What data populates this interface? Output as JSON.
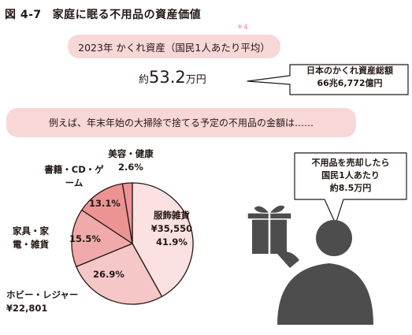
{
  "figure": {
    "number": "図 4-7",
    "title": "家庭に眠る不用品の資産価値",
    "note_mark": "＊4"
  },
  "summary": {
    "heading": "2023年 かくれ資産（国民1人あたり平均）",
    "amount_prefix": "約",
    "amount_value": "53.2",
    "amount_unit": "万円"
  },
  "total_callout": {
    "line1": "日本のかくれ資産総額",
    "line2": "66兆6,772億円"
  },
  "cleanup_banner": "例えば、年末年始の大掃除で捨てる予定の不用品の金額は……",
  "sell_callout": {
    "line1": "不用品を売却したら",
    "line2": "国民1人あたり",
    "line3": "約8.5万円"
  },
  "colors": {
    "pink_fill": "#f8d7d7",
    "slice_light": "#fbe1e1",
    "slice_mid": "#f6c7c7",
    "slice_dark": "#f1aaaa",
    "slice_darkest": "#ec9393",
    "outline": "#231815",
    "person": "#4d4d4d"
  },
  "chart_data": {
    "type": "pie",
    "title": "",
    "slices": [
      {
        "label": "服飾雑貨",
        "amount": "¥35,550",
        "percent": "41.9%",
        "value": 41.9
      },
      {
        "label": "ホビー・レジャー",
        "amount": "¥22,801",
        "percent": "26.9%",
        "value": 26.9
      },
      {
        "label": "家具・家電・雑貨",
        "amount": "",
        "percent": "15.5%",
        "value": 15.5
      },
      {
        "label": "書籍・CD・ゲーム",
        "amount": "",
        "percent": "13.1%",
        "value": 13.1
      },
      {
        "label": "美容・健康",
        "amount": "",
        "percent": "2.6%",
        "value": 2.6
      }
    ],
    "start": "top",
    "direction": "clockwise"
  }
}
